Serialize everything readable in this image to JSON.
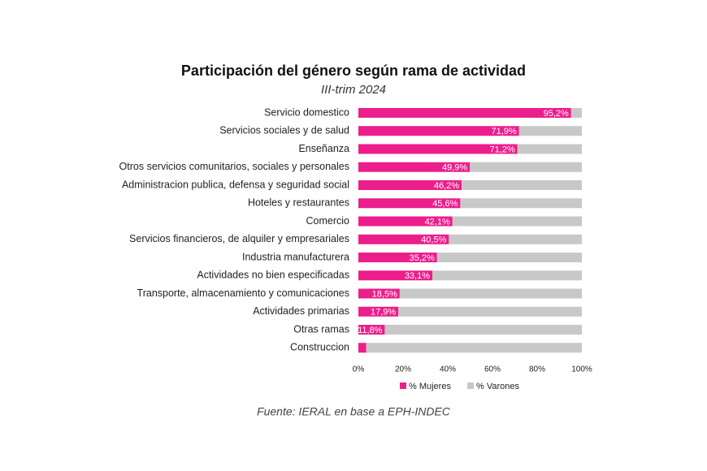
{
  "chart_data": {
    "type": "stacked-bar-horizontal",
    "title": "Participación del género según rama de actividad",
    "subtitle": "III-trim 2024",
    "source": "Fuente: IERAL en base a EPH-INDEC",
    "categories": [
      "Servicio domestico",
      "Servicios sociales y de salud",
      "Enseñanza",
      "Otros servicios comunitarios, sociales y personales",
      "Administracion publica, defensa y seguridad social",
      "Hoteles y restaurantes",
      "Comercio",
      "Servicios financieros, de alquiler y empresariales",
      "Industria manufacturera",
      "Actividades no bien especificadas",
      "Transporte, almacenamiento y comunicaciones",
      "Actividades primarias",
      "Otras ramas",
      "Construccion"
    ],
    "series": [
      {
        "name": "% Mujeres",
        "color": "#ec1e8c",
        "values": [
          95.2,
          71.9,
          71.2,
          49.9,
          46.2,
          45.6,
          42.1,
          40.5,
          35.2,
          33.1,
          18.5,
          17.9,
          11.8,
          3.5
        ],
        "value_labels": [
          "95,2%",
          "71,9%",
          "71,2%",
          "49,9%",
          "46,2%",
          "45,6%",
          "42,1%",
          "40,5%",
          "35,2%",
          "33,1%",
          "18,5%",
          "17,9%",
          "11,8%",
          null
        ]
      },
      {
        "name": "% Varones",
        "color": "#c8c8c8",
        "values": [
          4.8,
          28.1,
          28.8,
          50.1,
          53.8,
          54.4,
          57.9,
          59.5,
          64.8,
          66.9,
          81.5,
          82.1,
          88.2,
          96.5
        ]
      }
    ],
    "xlim": [
      0,
      100
    ],
    "xticks": [
      {
        "value": 0,
        "label": "0%"
      },
      {
        "value": 20,
        "label": "20%"
      },
      {
        "value": 40,
        "label": "40%"
      },
      {
        "value": 60,
        "label": "60%"
      },
      {
        "value": 80,
        "label": "80%"
      },
      {
        "value": 100,
        "label": "100%"
      }
    ]
  }
}
